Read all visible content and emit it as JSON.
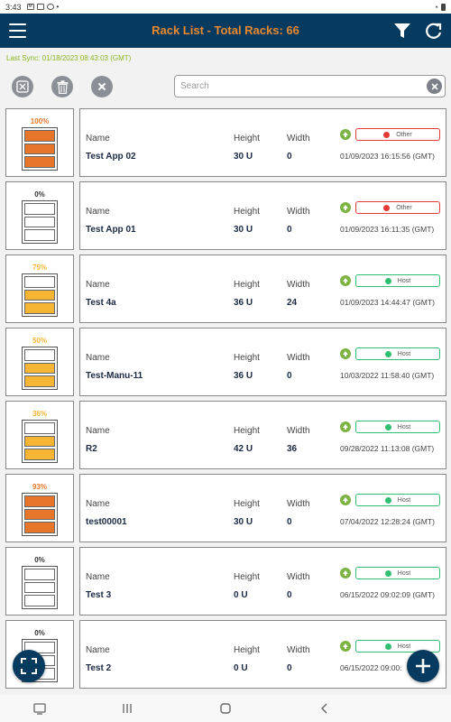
{
  "status_bar": {
    "time": "3:43"
  },
  "header": {
    "title": "Rack List - Total Racks: 66"
  },
  "last_sync": "Last Sync: 01/18/2023 08:43:03 (GMT)",
  "search": {
    "placeholder": "Search",
    "value": ""
  },
  "labels": {
    "name": "Name",
    "height": "Height",
    "width": "Width"
  },
  "colors": {
    "header_bg": "#063a5e",
    "title": "#e8892f",
    "sync_text": "#8ab624",
    "fill_high": "#e7762b",
    "fill_mid": "#f7b536",
    "status_other": "#e53935",
    "status_host": "#2fbf71",
    "up_icon": "#7cb342"
  },
  "racks": [
    {
      "percent": "100%",
      "name": "Test App 02",
      "height": "30 U",
      "width": "0",
      "status": "Other",
      "date": "01/09/2023 16:15:56 (GMT)",
      "fill": "high",
      "filled_slots": 3
    },
    {
      "percent": "0%",
      "name": "Test App 01",
      "height": "30 U",
      "width": "0",
      "status": "Other",
      "date": "01/09/2023 16:11:35 (GMT)",
      "fill": "none",
      "filled_slots": 0
    },
    {
      "percent": "75%",
      "name": "Test 4a",
      "height": "36 U",
      "width": "24",
      "status": "Host",
      "date": "01/09/2023 14:44:47 (GMT)",
      "fill": "mid",
      "filled_slots": 2
    },
    {
      "percent": "50%",
      "name": "Test-Manu-11",
      "height": "36 U",
      "width": "0",
      "status": "Host",
      "date": "10/03/2022 11:58:40 (GMT)",
      "fill": "mid",
      "filled_slots": 2
    },
    {
      "percent": "36%",
      "name": "R2",
      "height": "42 U",
      "width": "36",
      "status": "Host",
      "date": "09/28/2022 11:13:08 (GMT)",
      "fill": "mid",
      "filled_slots": 2
    },
    {
      "percent": "93%",
      "name": "test00001",
      "height": "30 U",
      "width": "0",
      "status": "Host",
      "date": "07/04/2022 12:28:24 (GMT)",
      "fill": "high",
      "filled_slots": 3
    },
    {
      "percent": "0%",
      "name": "Test 3",
      "height": "0 U",
      "width": "0",
      "status": "Host",
      "date": "06/15/2022 09:02:09 (GMT)",
      "fill": "none",
      "filled_slots": 0
    },
    {
      "percent": "0%",
      "name": "Test 2",
      "height": "0 U",
      "width": "0",
      "status": "Host",
      "date": "06/15/2022 09:00:",
      "fill": "none",
      "filled_slots": 0
    }
  ]
}
